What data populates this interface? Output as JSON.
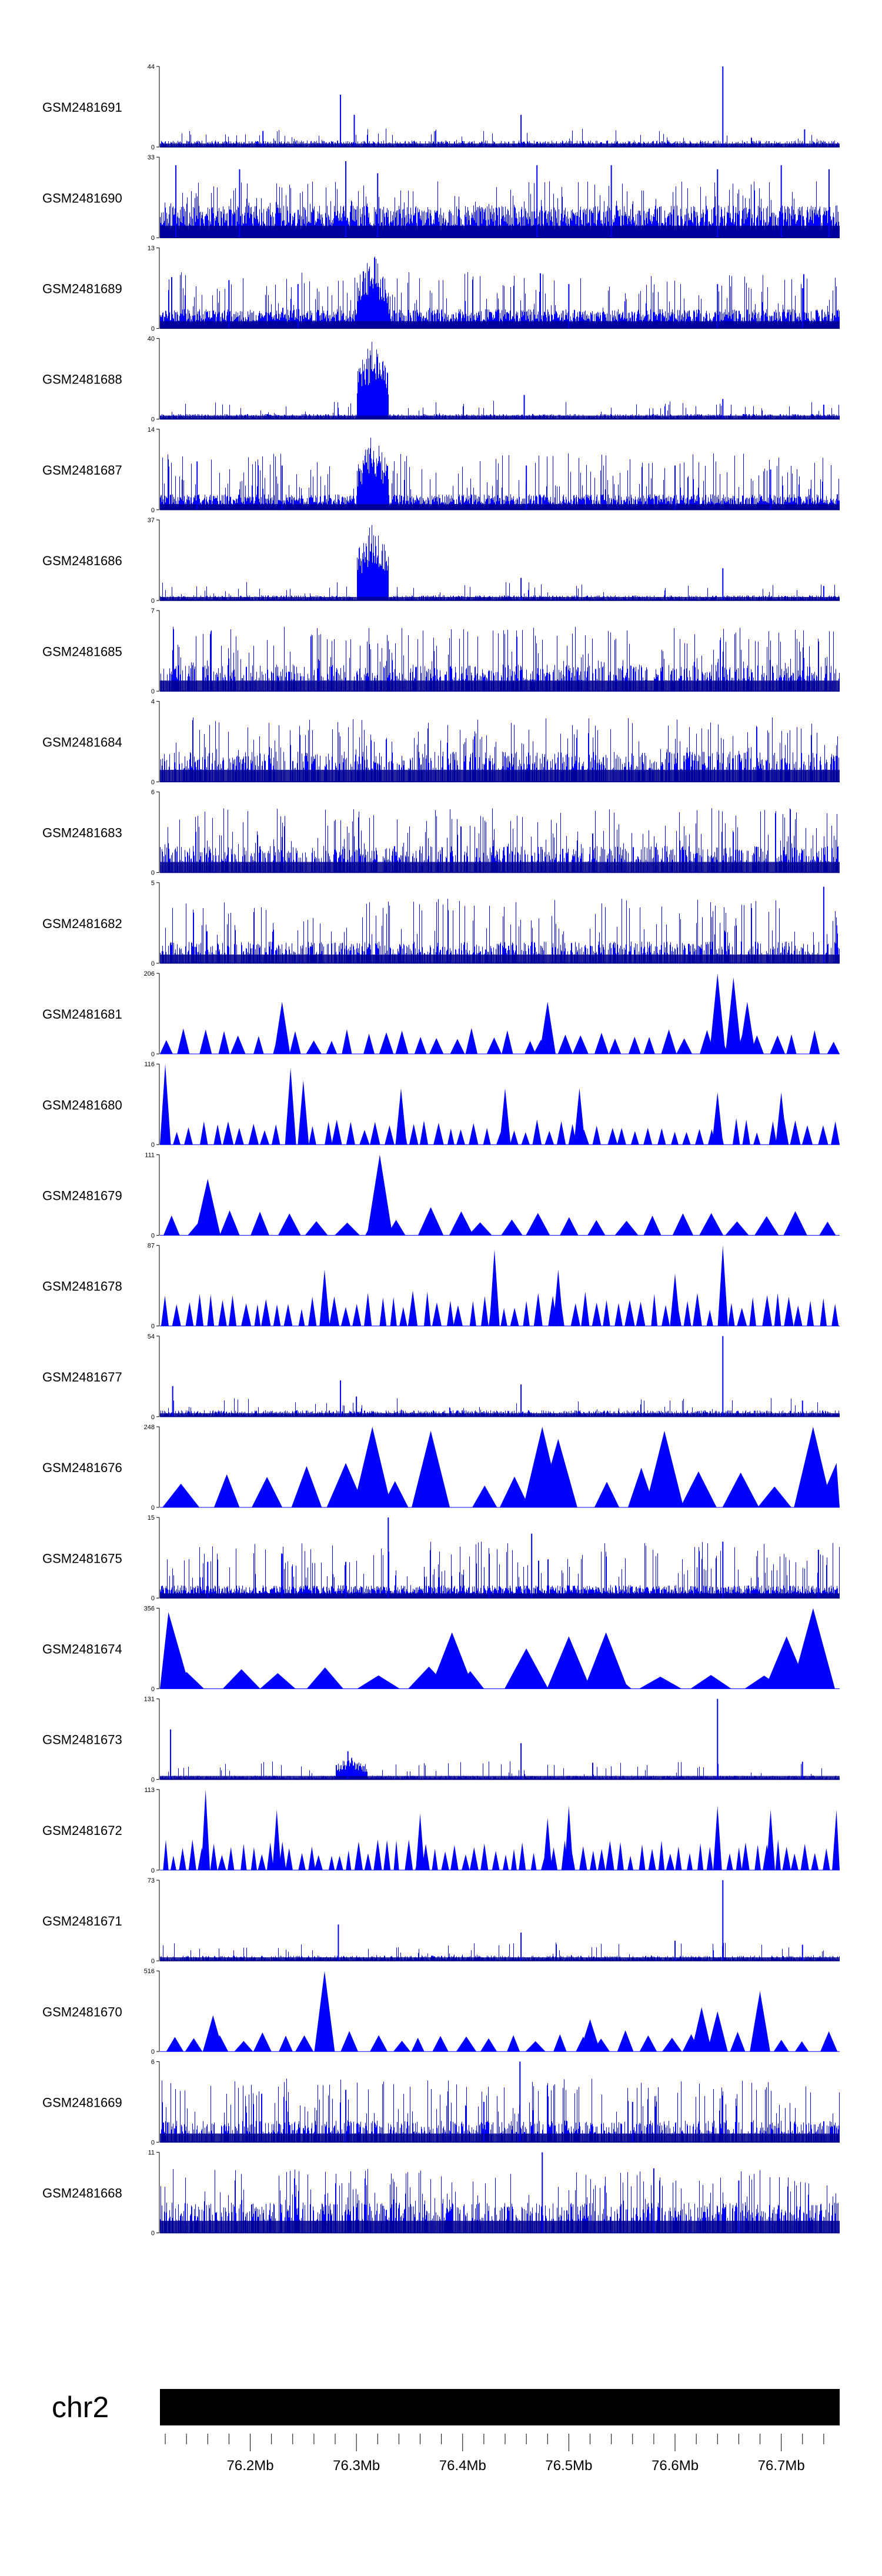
{
  "chart_data": {
    "type": "genome-browser-coverage",
    "colors": {
      "signal": "#0000ff",
      "axis": "#000000",
      "ideogram": "#000000",
      "background": "#ffffff"
    },
    "x_range": [
      76.115,
      76.755
    ],
    "x_unit": "Mb",
    "tracks": [
      {
        "name": "GSM2481691",
        "ylim": [
          0,
          44
        ],
        "style": "spiky",
        "baseline": 0.05,
        "density": 0.55,
        "peaks": [
          [
            76.212,
            0.2
          ],
          [
            76.285,
            0.65
          ],
          [
            76.298,
            0.4
          ],
          [
            76.455,
            0.4
          ],
          [
            76.645,
            1.0
          ],
          [
            76.722,
            0.22
          ]
        ]
      },
      {
        "name": "GSM2481690",
        "ylim": [
          0,
          33
        ],
        "style": "dense",
        "baseline": 0.25,
        "density": 0.85,
        "peaks": [
          [
            76.13,
            0.9
          ],
          [
            76.19,
            0.85
          ],
          [
            76.29,
            0.95
          ],
          [
            76.32,
            0.8
          ],
          [
            76.47,
            0.9
          ],
          [
            76.54,
            0.9
          ],
          [
            76.64,
            0.85
          ],
          [
            76.7,
            0.9
          ],
          [
            76.745,
            0.85
          ]
        ]
      },
      {
        "name": "GSM2481689",
        "ylim": [
          0,
          13
        ],
        "style": "dense",
        "baseline": 0.15,
        "density": 0.8,
        "enrich": [
          [
            76.3,
            76.33,
            0.95
          ]
        ],
        "peaks": [
          [
            76.18,
            0.6
          ],
          [
            76.245,
            0.55
          ],
          [
            76.5,
            0.55
          ],
          [
            76.64,
            0.55
          ],
          [
            76.72,
            0.5
          ]
        ]
      },
      {
        "name": "GSM2481688",
        "ylim": [
          0,
          40
        ],
        "style": "spiky",
        "baseline": 0.04,
        "density": 0.6,
        "enrich": [
          [
            76.3,
            76.33,
            1.0
          ]
        ],
        "peaks": [
          [
            76.458,
            0.3
          ],
          [
            76.645,
            0.25
          ],
          [
            76.74,
            0.18
          ]
        ]
      },
      {
        "name": "GSM2481687",
        "ylim": [
          0,
          14
        ],
        "style": "dense",
        "baseline": 0.12,
        "density": 0.8,
        "enrich": [
          [
            76.3,
            76.33,
            0.95
          ]
        ],
        "peaks": [
          [
            76.15,
            0.6
          ],
          [
            76.23,
            0.55
          ],
          [
            76.46,
            0.55
          ],
          [
            76.6,
            0.55
          ],
          [
            76.69,
            0.5
          ]
        ]
      },
      {
        "name": "GSM2481686",
        "ylim": [
          0,
          37
        ],
        "style": "spiky",
        "baseline": 0.04,
        "density": 0.6,
        "enrich": [
          [
            76.3,
            76.33,
            1.0
          ]
        ],
        "peaks": [
          [
            76.455,
            0.28
          ],
          [
            76.645,
            0.4
          ],
          [
            76.74,
            0.18
          ]
        ]
      },
      {
        "name": "GSM2481685",
        "ylim": [
          0,
          7
        ],
        "style": "binary",
        "baseline": 0.22,
        "density": 0.85,
        "peaks": []
      },
      {
        "name": "GSM2481684",
        "ylim": [
          0,
          4
        ],
        "style": "binary",
        "baseline": 0.25,
        "density": 0.85,
        "peaks": []
      },
      {
        "name": "GSM2481683",
        "ylim": [
          0,
          6
        ],
        "style": "binary",
        "baseline": 0.22,
        "density": 0.85,
        "peaks": []
      },
      {
        "name": "GSM2481682",
        "ylim": [
          0,
          5
        ],
        "style": "binary",
        "baseline": 0.18,
        "density": 0.85,
        "peaks": [
          [
            76.74,
            0.95
          ]
        ]
      },
      {
        "name": "GSM2481681",
        "ylim": [
          0,
          206
        ],
        "style": "triangles",
        "tri_n": 38,
        "tri_h": 0.3,
        "peaks": [
          [
            76.23,
            0.65
          ],
          [
            76.48,
            0.65
          ],
          [
            76.64,
            1.0
          ],
          [
            76.655,
            0.95
          ],
          [
            76.668,
            0.65
          ]
        ]
      },
      {
        "name": "GSM2481680",
        "ylim": [
          0,
          116
        ],
        "style": "triangles",
        "tri_n": 55,
        "tri_h": 0.3,
        "peaks": [
          [
            76.12,
            1.0
          ],
          [
            76.238,
            0.95
          ],
          [
            76.25,
            0.8
          ],
          [
            76.342,
            0.7
          ],
          [
            76.44,
            0.7
          ],
          [
            76.51,
            0.7
          ],
          [
            76.64,
            0.65
          ],
          [
            76.7,
            0.65
          ]
        ]
      },
      {
        "name": "GSM2481679",
        "ylim": [
          0,
          111
        ],
        "style": "triangles",
        "tri_n": 24,
        "tri_h": 0.3,
        "peaks": [
          [
            76.16,
            0.7
          ],
          [
            76.322,
            1.0
          ],
          [
            76.37,
            0.35
          ]
        ]
      },
      {
        "name": "GSM2481678",
        "ylim": [
          0,
          87
        ],
        "style": "triangles",
        "tri_n": 60,
        "tri_h": 0.4,
        "peaks": [
          [
            76.27,
            0.7
          ],
          [
            76.43,
            0.95
          ],
          [
            76.49,
            0.7
          ],
          [
            76.6,
            0.65
          ],
          [
            76.645,
            1.0
          ]
        ]
      },
      {
        "name": "GSM2481677",
        "ylim": [
          0,
          54
        ],
        "style": "spiky",
        "baseline": 0.05,
        "density": 0.55,
        "peaks": [
          [
            76.127,
            0.38
          ],
          [
            76.285,
            0.45
          ],
          [
            76.3,
            0.25
          ],
          [
            76.455,
            0.4
          ],
          [
            76.645,
            1.0
          ],
          [
            76.72,
            0.2
          ]
        ]
      },
      {
        "name": "GSM2481676",
        "ylim": [
          0,
          248
        ],
        "style": "triangles",
        "tri_n": 16,
        "tri_h": 0.5,
        "peaks": [
          [
            76.29,
            0.55
          ],
          [
            76.315,
            1.0
          ],
          [
            76.37,
            0.95
          ],
          [
            76.475,
            1.0
          ],
          [
            76.49,
            0.85
          ],
          [
            76.59,
            0.95
          ],
          [
            76.73,
            1.0
          ],
          [
            76.752,
            0.55
          ]
        ]
      },
      {
        "name": "GSM2481675",
        "ylim": [
          0,
          15
        ],
        "style": "dense",
        "baseline": 0.1,
        "density": 0.75,
        "peaks": [
          [
            76.16,
            0.45
          ],
          [
            76.23,
            0.55
          ],
          [
            76.29,
            0.45
          ],
          [
            76.33,
            1.0
          ],
          [
            76.425,
            0.55
          ],
          [
            76.465,
            0.8
          ],
          [
            76.645,
            0.7
          ],
          [
            76.735,
            0.6
          ]
        ]
      },
      {
        "name": "GSM2481674",
        "ylim": [
          0,
          356
        ],
        "style": "triangles",
        "tri_n": 14,
        "tri_h": 0.25,
        "peaks": [
          [
            76.123,
            0.95
          ],
          [
            76.39,
            0.7
          ],
          [
            76.46,
            0.5
          ],
          [
            76.5,
            0.65
          ],
          [
            76.535,
            0.7
          ],
          [
            76.705,
            0.65
          ],
          [
            76.73,
            1.0
          ]
        ]
      },
      {
        "name": "GSM2481673",
        "ylim": [
          0,
          131
        ],
        "style": "spiky",
        "baseline": 0.03,
        "density": 0.45,
        "enrich": [
          [
            76.28,
            76.31,
            0.3
          ]
        ],
        "peaks": [
          [
            76.125,
            0.62
          ],
          [
            76.292,
            0.35
          ],
          [
            76.455,
            0.45
          ],
          [
            76.64,
            1.0
          ],
          [
            76.72,
            0.22
          ]
        ]
      },
      {
        "name": "GSM2481672",
        "ylim": [
          0,
          113
        ],
        "style": "triangles",
        "tri_n": 70,
        "tri_h": 0.35,
        "peaks": [
          [
            76.158,
            1.0
          ],
          [
            76.225,
            0.75
          ],
          [
            76.36,
            0.7
          ],
          [
            76.48,
            0.65
          ],
          [
            76.5,
            0.8
          ],
          [
            76.64,
            0.8
          ],
          [
            76.69,
            0.75
          ],
          [
            76.752,
            0.75
          ]
        ]
      },
      {
        "name": "GSM2481671",
        "ylim": [
          0,
          73
        ],
        "style": "spiky",
        "baseline": 0.04,
        "density": 0.5,
        "peaks": [
          [
            76.283,
            0.45
          ],
          [
            76.455,
            0.35
          ],
          [
            76.6,
            0.25
          ],
          [
            76.645,
            1.0
          ],
          [
            76.72,
            0.2
          ]
        ]
      },
      {
        "name": "GSM2481670",
        "ylim": [
          0,
          516
        ],
        "style": "triangles",
        "tri_n": 30,
        "tri_h": 0.25,
        "peaks": [
          [
            76.165,
            0.45
          ],
          [
            76.27,
            1.0
          ],
          [
            76.52,
            0.4
          ],
          [
            76.625,
            0.55
          ],
          [
            76.64,
            0.5
          ],
          [
            76.68,
            0.75
          ]
        ]
      },
      {
        "name": "GSM2481669",
        "ylim": [
          0,
          6
        ],
        "style": "binary",
        "baseline": 0.18,
        "density": 0.8,
        "peaks": [
          [
            76.29,
            0.65
          ],
          [
            76.42,
            0.5
          ],
          [
            76.454,
            1.0
          ],
          [
            76.56,
            0.5
          ]
        ]
      },
      {
        "name": "GSM2481668",
        "ylim": [
          0,
          11
        ],
        "style": "binary",
        "baseline": 0.25,
        "density": 0.85,
        "peaks": [
          [
            76.475,
            1.0
          ],
          [
            76.58,
            0.8
          ],
          [
            76.66,
            0.65
          ]
        ]
      }
    ],
    "ideogram": {
      "chromosome": "chr2",
      "tick_step": 0.02,
      "tick_labels": [
        {
          "value": 76.2,
          "label": "76.2Mb"
        },
        {
          "value": 76.3,
          "label": "76.3Mb"
        },
        {
          "value": 76.4,
          "label": "76.4Mb"
        },
        {
          "value": 76.5,
          "label": "76.5Mb"
        },
        {
          "value": 76.6,
          "label": "76.6Mb"
        },
        {
          "value": 76.7,
          "label": "76.7Mb"
        }
      ]
    }
  }
}
